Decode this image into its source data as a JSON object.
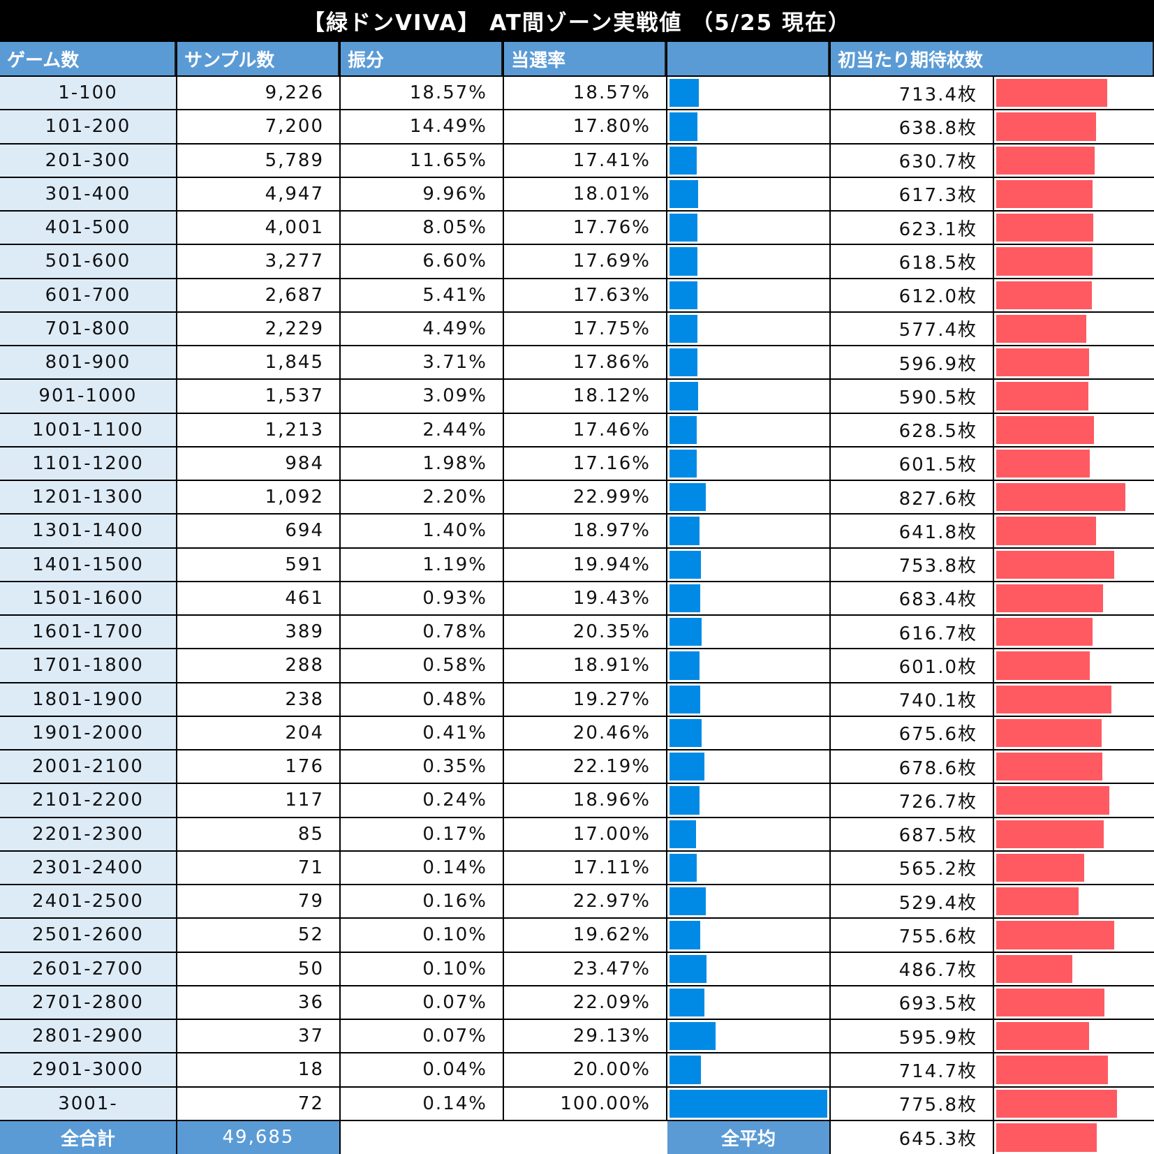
{
  "title": "【緑ドンVIVA】 AT間ゾーン実戦値 （5/25 現在）",
  "headers": [
    "ゲーム数",
    "サンプル数",
    "振分",
    "当選率",
    "",
    "初当たり期待枚数"
  ],
  "footer": {
    "total_label": "全合計",
    "total_value": "49,685",
    "avg_label": "全平均",
    "avg_value": "645.3枚"
  },
  "colors": {
    "header": "#5b9bd5",
    "game_col": "#ddebf7",
    "rate_bar": "#008ae6",
    "payout_bar": "#ff5a61"
  },
  "chart_data": {
    "type": "table",
    "title": "【緑ドンVIVA】 AT間ゾーン実戦値 （5/25 現在）",
    "columns": [
      "ゲーム数",
      "サンプル数",
      "振分",
      "当選率",
      "初当たり期待枚数"
    ],
    "rows": [
      {
        "game": "1-100",
        "samples": "9,226",
        "dist": "18.57%",
        "rate": "18.57%",
        "rate_value": 18.57,
        "payout": "713.4枚",
        "payout_value": 713.4
      },
      {
        "game": "101-200",
        "samples": "7,200",
        "dist": "14.49%",
        "rate": "17.80%",
        "rate_value": 17.8,
        "payout": "638.8枚",
        "payout_value": 638.8
      },
      {
        "game": "201-300",
        "samples": "5,789",
        "dist": "11.65%",
        "rate": "17.41%",
        "rate_value": 17.41,
        "payout": "630.7枚",
        "payout_value": 630.7
      },
      {
        "game": "301-400",
        "samples": "4,947",
        "dist": "9.96%",
        "rate": "18.01%",
        "rate_value": 18.01,
        "payout": "617.3枚",
        "payout_value": 617.3
      },
      {
        "game": "401-500",
        "samples": "4,001",
        "dist": "8.05%",
        "rate": "17.76%",
        "rate_value": 17.76,
        "payout": "623.1枚",
        "payout_value": 623.1
      },
      {
        "game": "501-600",
        "samples": "3,277",
        "dist": "6.60%",
        "rate": "17.69%",
        "rate_value": 17.69,
        "payout": "618.5枚",
        "payout_value": 618.5
      },
      {
        "game": "601-700",
        "samples": "2,687",
        "dist": "5.41%",
        "rate": "17.63%",
        "rate_value": 17.63,
        "payout": "612.0枚",
        "payout_value": 612.0
      },
      {
        "game": "701-800",
        "samples": "2,229",
        "dist": "4.49%",
        "rate": "17.75%",
        "rate_value": 17.75,
        "payout": "577.4枚",
        "payout_value": 577.4
      },
      {
        "game": "801-900",
        "samples": "1,845",
        "dist": "3.71%",
        "rate": "17.86%",
        "rate_value": 17.86,
        "payout": "596.9枚",
        "payout_value": 596.9
      },
      {
        "game": "901-1000",
        "samples": "1,537",
        "dist": "3.09%",
        "rate": "18.12%",
        "rate_value": 18.12,
        "payout": "590.5枚",
        "payout_value": 590.5
      },
      {
        "game": "1001-1100",
        "samples": "1,213",
        "dist": "2.44%",
        "rate": "17.46%",
        "rate_value": 17.46,
        "payout": "628.5枚",
        "payout_value": 628.5
      },
      {
        "game": "1101-1200",
        "samples": "984",
        "dist": "1.98%",
        "rate": "17.16%",
        "rate_value": 17.16,
        "payout": "601.5枚",
        "payout_value": 601.5
      },
      {
        "game": "1201-1300",
        "samples": "1,092",
        "dist": "2.20%",
        "rate": "22.99%",
        "rate_value": 22.99,
        "payout": "827.6枚",
        "payout_value": 827.6
      },
      {
        "game": "1301-1400",
        "samples": "694",
        "dist": "1.40%",
        "rate": "18.97%",
        "rate_value": 18.97,
        "payout": "641.8枚",
        "payout_value": 641.8
      },
      {
        "game": "1401-1500",
        "samples": "591",
        "dist": "1.19%",
        "rate": "19.94%",
        "rate_value": 19.94,
        "payout": "753.8枚",
        "payout_value": 753.8
      },
      {
        "game": "1501-1600",
        "samples": "461",
        "dist": "0.93%",
        "rate": "19.43%",
        "rate_value": 19.43,
        "payout": "683.4枚",
        "payout_value": 683.4
      },
      {
        "game": "1601-1700",
        "samples": "389",
        "dist": "0.78%",
        "rate": "20.35%",
        "rate_value": 20.35,
        "payout": "616.7枚",
        "payout_value": 616.7
      },
      {
        "game": "1701-1800",
        "samples": "288",
        "dist": "0.58%",
        "rate": "18.91%",
        "rate_value": 18.91,
        "payout": "601.0枚",
        "payout_value": 601.0
      },
      {
        "game": "1801-1900",
        "samples": "238",
        "dist": "0.48%",
        "rate": "19.27%",
        "rate_value": 19.27,
        "payout": "740.1枚",
        "payout_value": 740.1
      },
      {
        "game": "1901-2000",
        "samples": "204",
        "dist": "0.41%",
        "rate": "20.46%",
        "rate_value": 20.46,
        "payout": "675.6枚",
        "payout_value": 675.6
      },
      {
        "game": "2001-2100",
        "samples": "176",
        "dist": "0.35%",
        "rate": "22.19%",
        "rate_value": 22.19,
        "payout": "678.6枚",
        "payout_value": 678.6
      },
      {
        "game": "2101-2200",
        "samples": "117",
        "dist": "0.24%",
        "rate": "18.96%",
        "rate_value": 18.96,
        "payout": "726.7枚",
        "payout_value": 726.7
      },
      {
        "game": "2201-2300",
        "samples": "85",
        "dist": "0.17%",
        "rate": "17.00%",
        "rate_value": 17.0,
        "payout": "687.5枚",
        "payout_value": 687.5
      },
      {
        "game": "2301-2400",
        "samples": "71",
        "dist": "0.14%",
        "rate": "17.11%",
        "rate_value": 17.11,
        "payout": "565.2枚",
        "payout_value": 565.2
      },
      {
        "game": "2401-2500",
        "samples": "79",
        "dist": "0.16%",
        "rate": "22.97%",
        "rate_value": 22.97,
        "payout": "529.4枚",
        "payout_value": 529.4
      },
      {
        "game": "2501-2600",
        "samples": "52",
        "dist": "0.10%",
        "rate": "19.62%",
        "rate_value": 19.62,
        "payout": "755.6枚",
        "payout_value": 755.6
      },
      {
        "game": "2601-2700",
        "samples": "50",
        "dist": "0.10%",
        "rate": "23.47%",
        "rate_value": 23.47,
        "payout": "486.7枚",
        "payout_value": 486.7
      },
      {
        "game": "2701-2800",
        "samples": "36",
        "dist": "0.07%",
        "rate": "22.09%",
        "rate_value": 22.09,
        "payout": "693.5枚",
        "payout_value": 693.5
      },
      {
        "game": "2801-2900",
        "samples": "37",
        "dist": "0.07%",
        "rate": "29.13%",
        "rate_value": 29.13,
        "payout": "595.9枚",
        "payout_value": 595.9
      },
      {
        "game": "2901-3000",
        "samples": "18",
        "dist": "0.04%",
        "rate": "20.00%",
        "rate_value": 20.0,
        "payout": "714.7枚",
        "payout_value": 714.7
      },
      {
        "game": "3001-",
        "samples": "72",
        "dist": "0.14%",
        "rate": "100.00%",
        "rate_value": 100.0,
        "payout": "775.8枚",
        "payout_value": 775.8
      }
    ],
    "average_payout_value": 645.3
  }
}
